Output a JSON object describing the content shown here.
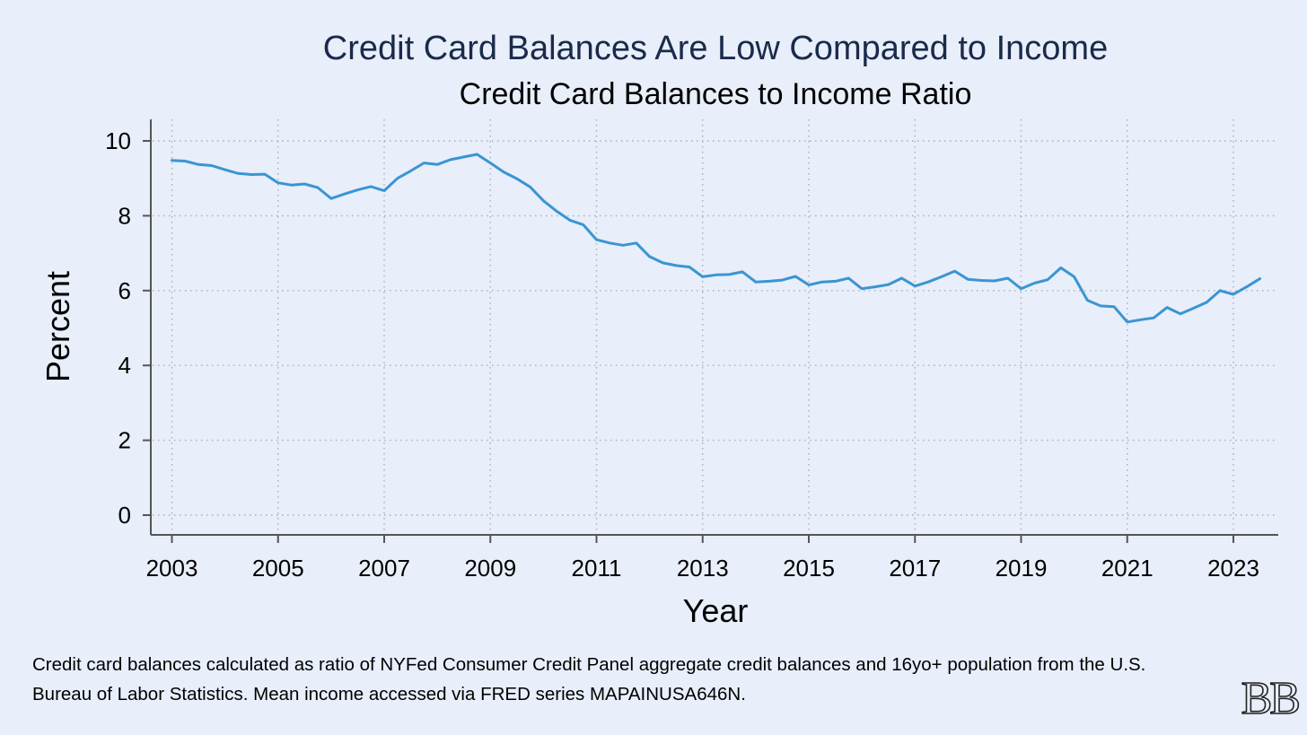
{
  "chart_data": {
    "type": "line",
    "title": "Credit Card Balances Are Low Compared to Income",
    "subtitle": "Credit Card Balances to Income Ratio",
    "xlabel": "Year",
    "ylabel": "Percent",
    "xlim": [
      2002.6,
      2023.9
    ],
    "ylim": [
      -0.5,
      10.5
    ],
    "x_ticks": [
      2003,
      2005,
      2007,
      2009,
      2011,
      2013,
      2015,
      2017,
      2019,
      2021,
      2023
    ],
    "y_ticks": [
      0,
      2,
      4,
      6,
      8,
      10
    ],
    "grid": true,
    "line_color": "#3a95d2",
    "series": [
      {
        "x": [
          2003.0,
          2003.25,
          2003.5,
          2003.75,
          2004.0,
          2004.25,
          2004.5,
          2004.75,
          2005.0,
          2005.25,
          2005.5,
          2005.75,
          2006.0,
          2006.25,
          2006.5,
          2006.75,
          2007.0,
          2007.25,
          2007.5,
          2007.75,
          2008.0,
          2008.25,
          2008.5,
          2008.75,
          2009.0,
          2009.25,
          2009.5,
          2009.75,
          2010.0,
          2010.25,
          2010.5,
          2010.75,
          2011.0,
          2011.25,
          2011.5,
          2011.75,
          2012.0,
          2012.25,
          2012.5,
          2012.75,
          2013.0,
          2013.25,
          2013.5,
          2013.75,
          2014.0,
          2014.25,
          2014.5,
          2014.75,
          2015.0,
          2015.25,
          2015.5,
          2015.75,
          2016.0,
          2016.25,
          2016.5,
          2016.75,
          2017.0,
          2017.25,
          2017.5,
          2017.75,
          2018.0,
          2018.25,
          2018.5,
          2018.75,
          2019.0,
          2019.25,
          2019.5,
          2019.75,
          2020.0,
          2020.25,
          2020.5,
          2020.75,
          2021.0,
          2021.25,
          2021.5,
          2021.75,
          2022.0,
          2022.25,
          2022.5,
          2022.75,
          2023.0,
          2023.25,
          2023.5
        ],
        "values": [
          9.48,
          9.46,
          9.37,
          9.34,
          9.23,
          9.13,
          9.1,
          9.11,
          8.88,
          8.82,
          8.85,
          8.75,
          8.46,
          8.58,
          8.69,
          8.78,
          8.67,
          9.0,
          9.2,
          9.41,
          9.37,
          9.5,
          9.57,
          9.64,
          9.41,
          9.17,
          8.99,
          8.77,
          8.4,
          8.12,
          7.88,
          7.76,
          7.36,
          7.27,
          7.21,
          7.27,
          6.91,
          6.74,
          6.67,
          6.63,
          6.37,
          6.42,
          6.43,
          6.5,
          6.23,
          6.25,
          6.28,
          6.38,
          6.15,
          6.23,
          6.25,
          6.33,
          6.05,
          6.1,
          6.16,
          6.33,
          6.12,
          6.23,
          6.37,
          6.52,
          6.3,
          6.27,
          6.26,
          6.33,
          6.05,
          6.2,
          6.29,
          6.61,
          6.37,
          5.74,
          5.59,
          5.57,
          5.16,
          5.22,
          5.27,
          5.55,
          5.38,
          5.53,
          5.69,
          6.0,
          5.9,
          6.1,
          6.32
        ]
      }
    ]
  },
  "footnote": {
    "line1": "Credit card balances calculated as ratio of NYFed Consumer Credit Panel aggregate credit balances and 16yo+ population from the U.S.",
    "line2": "Bureau of Labor Statistics. Mean income accessed via FRED series MAPAINUSA646N."
  },
  "logo_text": "BB",
  "colors": {
    "background": "#e8eefa",
    "title": "#1a2a4a",
    "axis": "#555555",
    "grid": "#a9aeb8"
  }
}
